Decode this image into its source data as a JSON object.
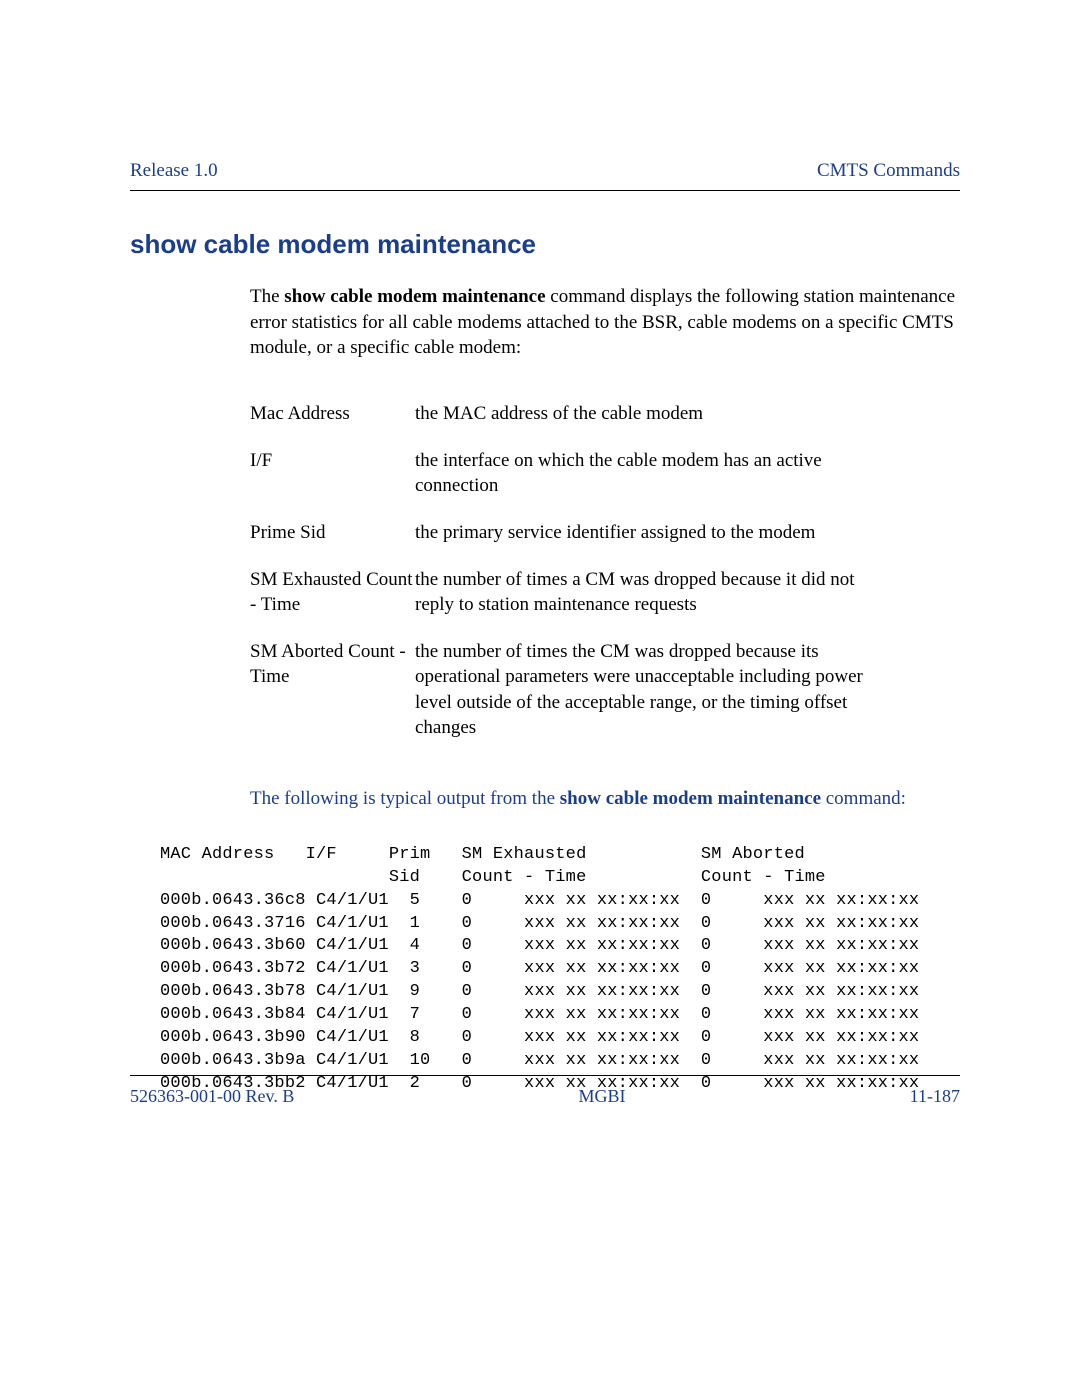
{
  "colors": {
    "accent": "#1a3e8c",
    "text": "#000000",
    "background": "#ffffff",
    "rule": "#000000"
  },
  "typography": {
    "body_family": "Times New Roman",
    "body_size_pt": 14,
    "mono_family": "Courier New",
    "mono_size_pt": 12,
    "title_family": "Arial",
    "title_size_pt": 20,
    "title_weight": "bold"
  },
  "header": {
    "left": "Release 1.0",
    "right": "CMTS Commands"
  },
  "title": "show cable modem maintenance",
  "intro": {
    "pre": "The ",
    "cmd": "show cable modem maintenance",
    "post": " command displays the following station maintenance error statistics for all cable modems attached to the BSR, cable modems on a specific CMTS module, or a specific cable modem:"
  },
  "definitions": [
    {
      "term": "Mac Address",
      "desc": "the MAC address of the cable modem"
    },
    {
      "term": "I/F",
      "desc": "the interface on which the cable modem has an active connection"
    },
    {
      "term": "Prime Sid",
      "desc": "the primary service identifier assigned to the modem"
    },
    {
      "term": "SM Exhausted Count - Time",
      "desc": "the number of times a CM was dropped because it did not reply to station maintenance requests"
    },
    {
      "term": "SM Aborted Count - Time",
      "desc": "the number of times the CM was dropped because its operational parameters were unacceptable including power level outside of the acceptable range, or the timing offset changes"
    }
  ],
  "lead_in": {
    "pre": "The following is typical output from the ",
    "cmd": "show cable modem maintenance",
    "post": " command:"
  },
  "cli": {
    "header1": "MAC Address   I/F     Prim   SM Exhausted           SM Aborted",
    "header2": "                      Sid    Count - Time           Count - Time",
    "columns": [
      "MAC Address",
      "I/F",
      "Prim Sid",
      "SM Exhausted Count",
      "SM Exhausted Time",
      "SM Aborted Count",
      "SM Aborted Time"
    ],
    "rows": [
      [
        "000b.0643.36c8",
        "C4/1/U1",
        "5",
        "0",
        "xxx xx xx:xx:xx",
        "0",
        "xxx xx xx:xx:xx"
      ],
      [
        "000b.0643.3716",
        "C4/1/U1",
        "1",
        "0",
        "xxx xx xx:xx:xx",
        "0",
        "xxx xx xx:xx:xx"
      ],
      [
        "000b.0643.3b60",
        "C4/1/U1",
        "4",
        "0",
        "xxx xx xx:xx:xx",
        "0",
        "xxx xx xx:xx:xx"
      ],
      [
        "000b.0643.3b72",
        "C4/1/U1",
        "3",
        "0",
        "xxx xx xx:xx:xx",
        "0",
        "xxx xx xx:xx:xx"
      ],
      [
        "000b.0643.3b78",
        "C4/1/U1",
        "9",
        "0",
        "xxx xx xx:xx:xx",
        "0",
        "xxx xx xx:xx:xx"
      ],
      [
        "000b.0643.3b84",
        "C4/1/U1",
        "7",
        "0",
        "xxx xx xx:xx:xx",
        "0",
        "xxx xx xx:xx:xx"
      ],
      [
        "000b.0643.3b90",
        "C4/1/U1",
        "8",
        "0",
        "xxx xx xx:xx:xx",
        "0",
        "xxx xx xx:xx:xx"
      ],
      [
        "000b.0643.3b9a",
        "C4/1/U1",
        "10",
        "0",
        "xxx xx xx:xx:xx",
        "0",
        "xxx xx xx:xx:xx"
      ],
      [
        "000b.0643.3bb2",
        "C4/1/U1",
        "2",
        "0",
        "xxx xx xx:xx:xx",
        "0",
        "xxx xx xx:xx:xx"
      ]
    ]
  },
  "footer": {
    "left": "526363-001-00 Rev. B",
    "center": "MGBI",
    "right": "11-187"
  }
}
